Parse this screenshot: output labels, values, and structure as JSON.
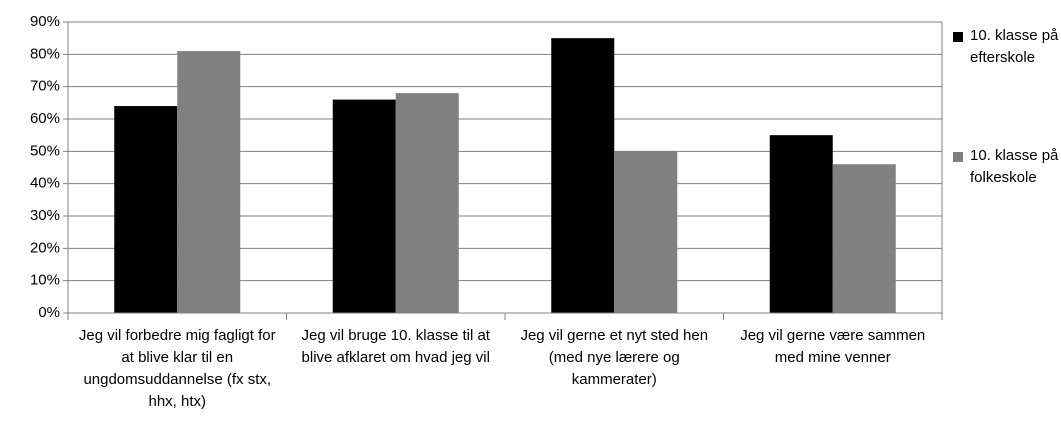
{
  "chart_data": {
    "type": "bar",
    "categories": [
      "Jeg vil forbedre mig fagligt for at blive klar til en ungdomsuddannelse (fx stx, hhx, htx)",
      "Jeg vil bruge 10. klasse til at blive afklaret om hvad jeg vil",
      "Jeg vil gerne et nyt sted hen (med nye lærere og kammerater)",
      "Jeg vil gerne være sammen med mine venner"
    ],
    "series": [
      {
        "name": "10. klasse på efterskole",
        "color": "#000000",
        "values": [
          64,
          66,
          85,
          55
        ]
      },
      {
        "name": "10. klasse på folkeskole",
        "color": "#808080",
        "values": [
          81,
          68,
          50,
          46
        ]
      }
    ],
    "ylim": [
      0,
      90
    ],
    "yticks": [
      {
        "value": 0,
        "label": "0%"
      },
      {
        "value": 10,
        "label": "10%"
      },
      {
        "value": 20,
        "label": "20%"
      },
      {
        "value": 30,
        "label": "30%"
      },
      {
        "value": 40,
        "label": "40%"
      },
      {
        "value": 50,
        "label": "50%"
      },
      {
        "value": 60,
        "label": "60%"
      },
      {
        "value": 70,
        "label": "70%"
      },
      {
        "value": 80,
        "label": "80%"
      },
      {
        "value": 90,
        "label": "90%"
      }
    ],
    "grid": true,
    "legend": "right"
  }
}
